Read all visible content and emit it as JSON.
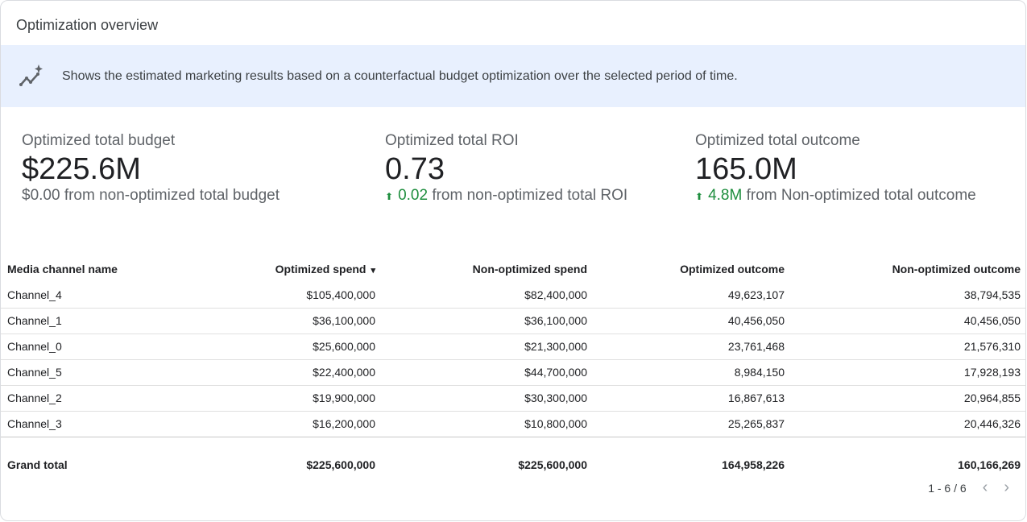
{
  "title": "Optimization overview",
  "banner": {
    "icon": "trending-sparkle-icon",
    "text": "Shows the estimated marketing results based on a counterfactual budget optimization over the selected period of time."
  },
  "kpis": [
    {
      "label": "Optimized total budget",
      "value": "$225.6M",
      "delta": "",
      "sub": "$0.00 from non-optimized total budget"
    },
    {
      "label": "Optimized total ROI",
      "value": "0.73",
      "delta": "0.02",
      "sub": " from non-optimized total ROI"
    },
    {
      "label": "Optimized total outcome",
      "value": "165.0M",
      "delta": "4.8M",
      "sub": " from Non-optimized total outcome"
    }
  ],
  "colors": {
    "positive": "#1e8e3e",
    "banner": "#e8f0fe"
  },
  "table": {
    "headers": [
      "Media channel name",
      "Optimized spend",
      "Non-optimized spend",
      "Optimized outcome",
      "Non-optimized outcome"
    ],
    "sort_indicator": "▾",
    "rows": [
      [
        "Channel_4",
        "$105,400,000",
        "$82,400,000",
        "49,623,107",
        "38,794,535"
      ],
      [
        "Channel_1",
        "$36,100,000",
        "$36,100,000",
        "40,456,050",
        "40,456,050"
      ],
      [
        "Channel_0",
        "$25,600,000",
        "$21,300,000",
        "23,761,468",
        "21,576,310"
      ],
      [
        "Channel_5",
        "$22,400,000",
        "$44,700,000",
        "8,984,150",
        "17,928,193"
      ],
      [
        "Channel_2",
        "$19,900,000",
        "$30,300,000",
        "16,867,613",
        "20,964,855"
      ],
      [
        "Channel_3",
        "$16,200,000",
        "$10,800,000",
        "25,265,837",
        "20,446,326"
      ]
    ],
    "total": [
      "Grand total",
      "$225,600,000",
      "$225,600,000",
      "164,958,226",
      "160,166,269"
    ]
  },
  "pager": {
    "range": "1 - 6 / 6",
    "prev": "‹",
    "next": "›"
  }
}
